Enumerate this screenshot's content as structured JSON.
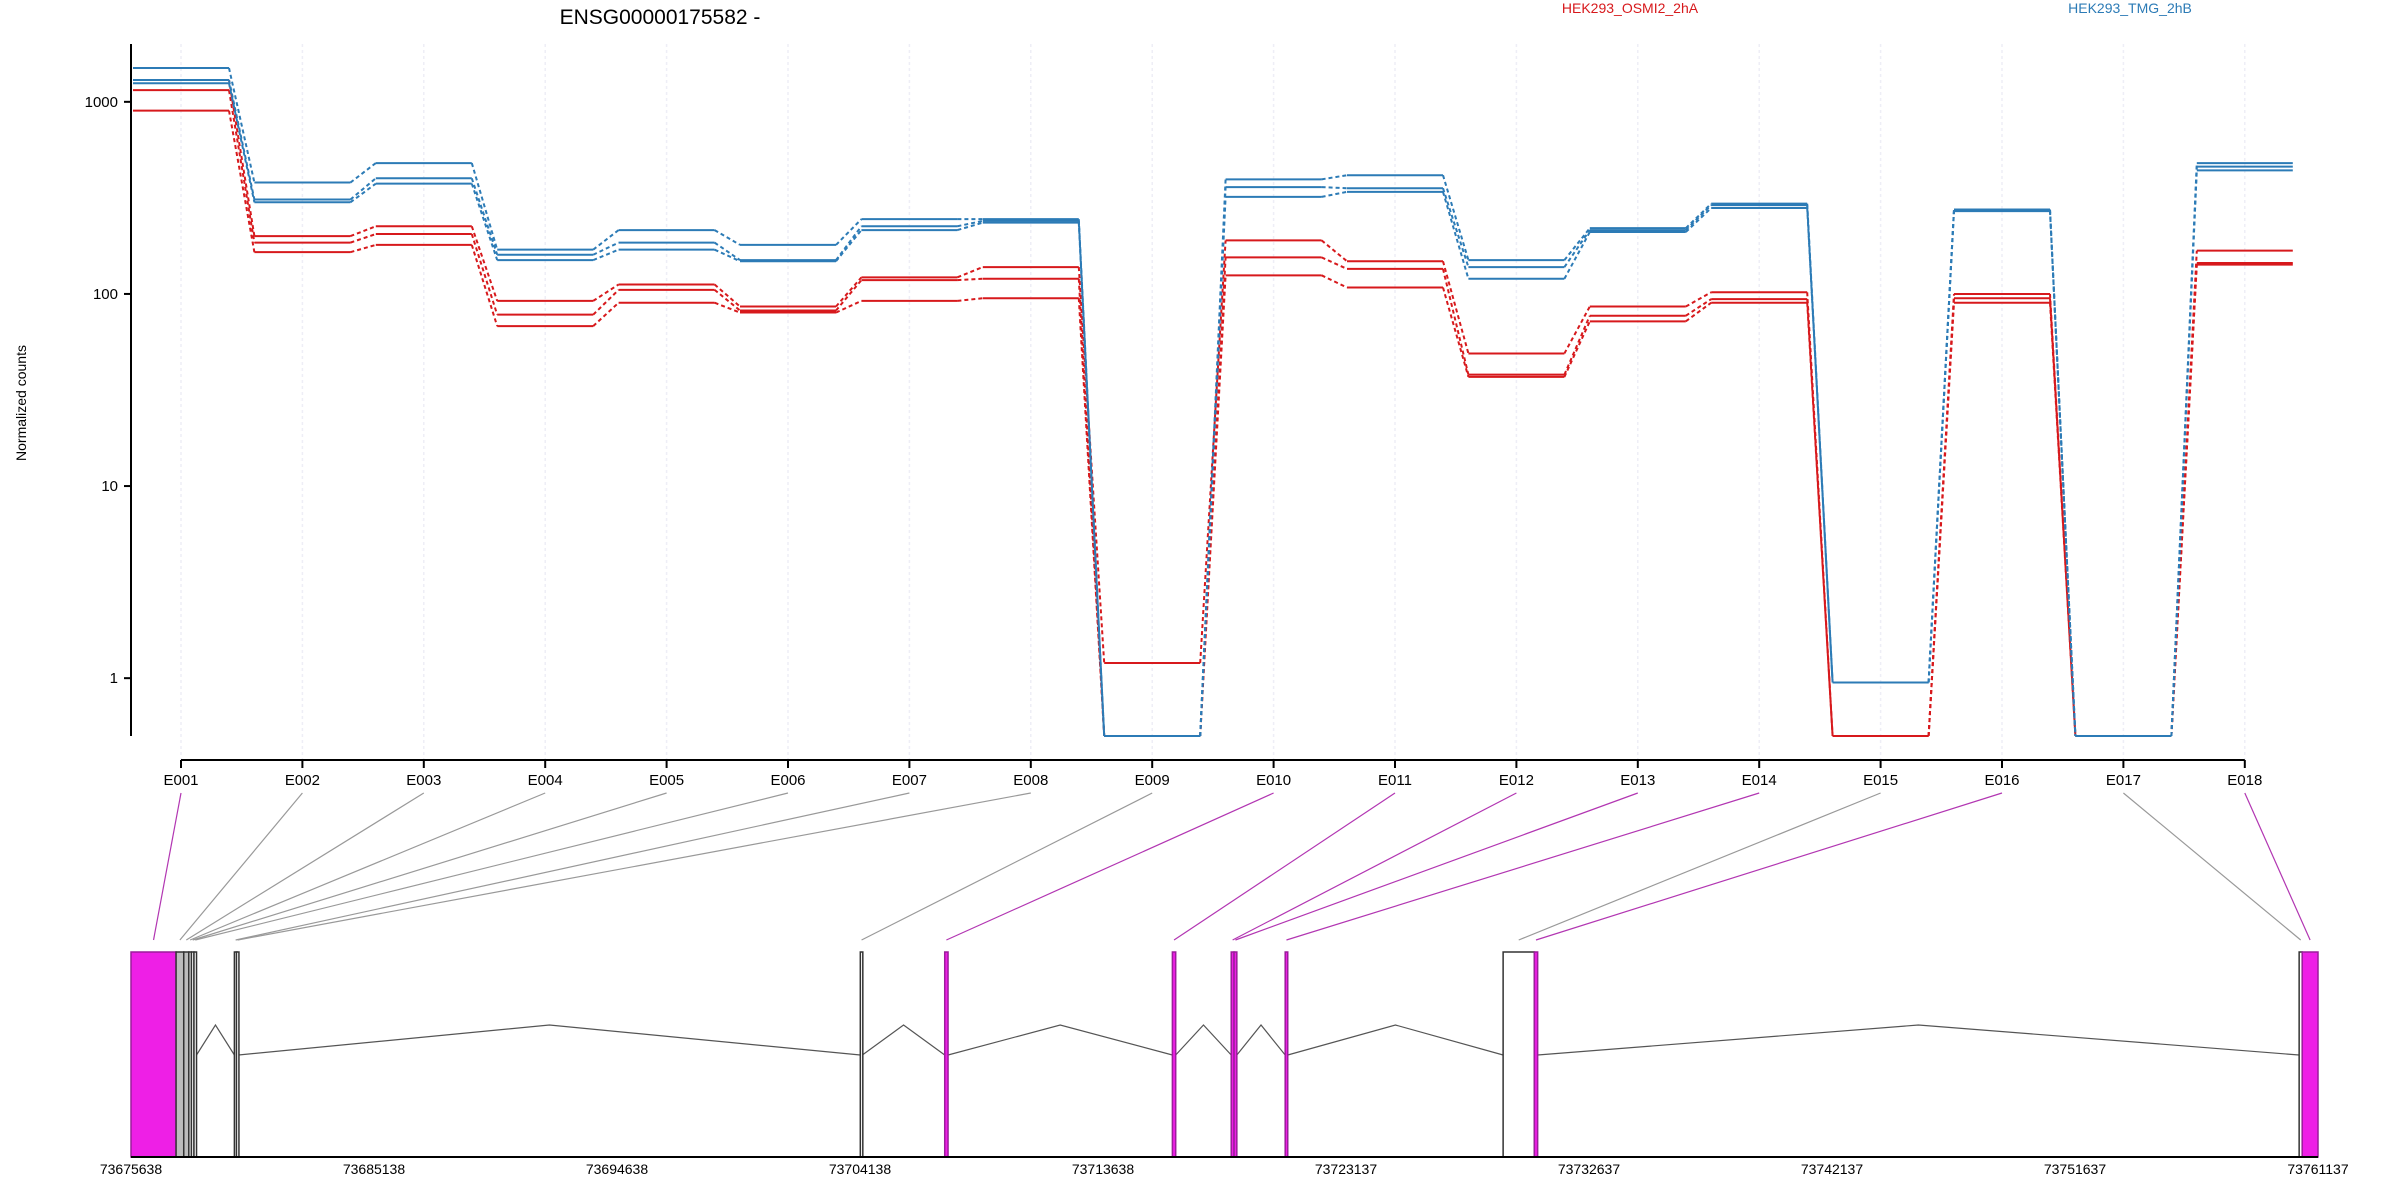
{
  "chart_data": {
    "type": "line",
    "title": "ENSG00000175582 -",
    "ylabel": "Normalized counts",
    "y_scale": "log",
    "y_ticks": [
      1,
      10,
      100,
      1000
    ],
    "y_tick_labels": [
      "1",
      "10",
      "100",
      "1000"
    ],
    "ylim": [
      0.5,
      2000
    ],
    "categories": [
      "E001",
      "E002",
      "E003",
      "E004",
      "E005",
      "E006",
      "E007",
      "E008",
      "E009",
      "E010",
      "E011",
      "E012",
      "E013",
      "E014",
      "E015",
      "E016",
      "E017",
      "E018"
    ],
    "legend": [
      {
        "name": "HEK293_OSMI2_2hA",
        "color": "#d7191c"
      },
      {
        "name": "HEK293_TMG_2hB",
        "color": "#2c7bb6"
      }
    ],
    "series": [
      {
        "group": "HEK293_OSMI2_2hA",
        "color": "#d7191c",
        "values": [
          1300,
          200,
          225,
          92,
          112,
          86,
          122,
          138,
          1.2,
          190,
          148,
          49,
          86,
          102,
          0.5,
          100,
          0.5,
          168
        ]
      },
      {
        "group": "HEK293_OSMI2_2hA",
        "color": "#d7191c",
        "values": [
          1150,
          185,
          205,
          78,
          105,
          82,
          118,
          120,
          0.5,
          155,
          135,
          38,
          77,
          94,
          0.5,
          95,
          0.5,
          145
        ]
      },
      {
        "group": "HEK293_OSMI2_2hA",
        "color": "#d7191c",
        "values": [
          900,
          165,
          180,
          68,
          90,
          80,
          92,
          95,
          0.5,
          125,
          108,
          37,
          72,
          90,
          0.5,
          90,
          0.5,
          142
        ]
      },
      {
        "group": "HEK293_TMG_2hB",
        "color": "#2c7bb6",
        "values": [
          1500,
          380,
          480,
          170,
          215,
          180,
          245,
          245,
          0.5,
          395,
          415,
          150,
          220,
          295,
          0.95,
          275,
          0.5,
          480
        ]
      },
      {
        "group": "HEK293_TMG_2hB",
        "color": "#2c7bb6",
        "values": [
          1300,
          310,
          400,
          160,
          185,
          150,
          225,
          240,
          0.5,
          360,
          355,
          138,
          215,
          290,
          0.95,
          275,
          0.5,
          460
        ]
      },
      {
        "group": "HEK293_TMG_2hB",
        "color": "#2c7bb6",
        "values": [
          1250,
          300,
          375,
          150,
          170,
          148,
          215,
          235,
          0.5,
          320,
          340,
          120,
          210,
          280,
          0.95,
          270,
          0.5,
          440
        ]
      }
    ],
    "gene_model": {
      "coordinate_labels": [
        "73675638",
        "73685138",
        "73694638",
        "73704138",
        "73713638",
        "73723137",
        "73732637",
        "73742137",
        "73751637",
        "73761137"
      ],
      "x_start": 73675638,
      "x_end": 73761137,
      "exons": [
        {
          "id": "E001",
          "start": 73675638,
          "end": 73677400,
          "color": "#ee1fe6",
          "highlight": true
        },
        {
          "id": "E002",
          "start": 73677400,
          "end": 73677700,
          "color": "#bdbdbd",
          "highlight": false
        },
        {
          "id": "E003",
          "start": 73677700,
          "end": 73677900,
          "color": "#bdbdbd",
          "highlight": false
        },
        {
          "id": "E004",
          "start": 73677900,
          "end": 73678000,
          "color": "#ffffff",
          "highlight": false
        },
        {
          "id": "E005",
          "start": 73678000,
          "end": 73678100,
          "color": "#ffffff",
          "highlight": false
        },
        {
          "id": "E006",
          "start": 73678100,
          "end": 73678200,
          "color": "#ffffff",
          "highlight": false
        },
        {
          "id": "E007",
          "start": 73679680,
          "end": 73679760,
          "color": "#ffffff",
          "highlight": false
        },
        {
          "id": "E008",
          "start": 73679760,
          "end": 73679840,
          "color": "#ffffff",
          "highlight": false
        },
        {
          "id": "E009",
          "start": 73704150,
          "end": 73704230,
          "color": "#ffffff",
          "highlight": false
        },
        {
          "id": "E010",
          "start": 73707450,
          "end": 73707580,
          "color": "#ee1fe6",
          "highlight": true
        },
        {
          "id": "E011",
          "start": 73716350,
          "end": 73716480,
          "color": "#ee1fe6",
          "highlight": true
        },
        {
          "id": "E012",
          "start": 73718650,
          "end": 73718760,
          "color": "#ee1fe6",
          "highlight": true
        },
        {
          "id": "E013",
          "start": 73718760,
          "end": 73718870,
          "color": "#ee1fe6",
          "highlight": true
        },
        {
          "id": "E014",
          "start": 73720760,
          "end": 73720860,
          "color": "#ee1fe6",
          "highlight": true
        },
        {
          "id": "E015",
          "start": 73729280,
          "end": 73730500,
          "color": "#ffffff",
          "highlight": false
        },
        {
          "id": "E016",
          "start": 73730500,
          "end": 73730630,
          "color": "#ee1fe6",
          "highlight": true
        },
        {
          "id": "E017",
          "start": 73760400,
          "end": 73760520,
          "color": "#ffffff",
          "highlight": false
        },
        {
          "id": "E018",
          "start": 73760520,
          "end": 73761137,
          "color": "#ee1fe6",
          "highlight": true
        }
      ]
    }
  }
}
